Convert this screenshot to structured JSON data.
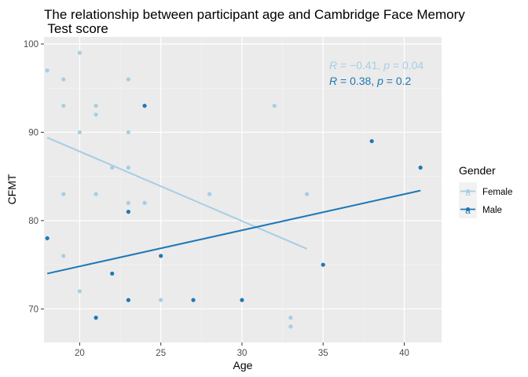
{
  "chart_data": {
    "type": "scatter",
    "title_line1": "The relationship between participant age and Cambridge Face Memory",
    "title_line2": " Test score",
    "xlabel": "Age",
    "ylabel": "CFMT",
    "xlim": [
      17.8,
      42.3
    ],
    "ylim": [
      66.2,
      100.8
    ],
    "xticks": [
      20,
      25,
      30,
      35,
      40
    ],
    "yticks": [
      70,
      80,
      90,
      100
    ],
    "grid": true,
    "legend": {
      "title": "Gender",
      "placement": "right"
    },
    "series": [
      {
        "name": "Female",
        "color": "#a6cee3",
        "points": [
          {
            "x": 18,
            "y": 97
          },
          {
            "x": 19,
            "y": 96
          },
          {
            "x": 19,
            "y": 93
          },
          {
            "x": 19,
            "y": 83
          },
          {
            "x": 19,
            "y": 76
          },
          {
            "x": 20,
            "y": 99
          },
          {
            "x": 20,
            "y": 90
          },
          {
            "x": 20,
            "y": 72
          },
          {
            "x": 21,
            "y": 93
          },
          {
            "x": 21,
            "y": 92
          },
          {
            "x": 21,
            "y": 83
          },
          {
            "x": 22,
            "y": 86
          },
          {
            "x": 23,
            "y": 96
          },
          {
            "x": 23,
            "y": 90
          },
          {
            "x": 23,
            "y": 86
          },
          {
            "x": 23,
            "y": 82
          },
          {
            "x": 24,
            "y": 82
          },
          {
            "x": 25,
            "y": 71
          },
          {
            "x": 28,
            "y": 83
          },
          {
            "x": 32,
            "y": 93
          },
          {
            "x": 33,
            "y": 69
          },
          {
            "x": 33,
            "y": 68
          },
          {
            "x": 34,
            "y": 83
          }
        ],
        "fit": {
          "x": [
            18,
            34
          ],
          "y": [
            89.4,
            76.8
          ]
        },
        "stat": {
          "r_value": "−0.41",
          "p_value": "0.04"
        }
      },
      {
        "name": "Male",
        "color": "#1f78b4",
        "points": [
          {
            "x": 18,
            "y": 78
          },
          {
            "x": 21,
            "y": 69
          },
          {
            "x": 22,
            "y": 74
          },
          {
            "x": 23,
            "y": 81
          },
          {
            "x": 23,
            "y": 71
          },
          {
            "x": 24,
            "y": 93
          },
          {
            "x": 25,
            "y": 76
          },
          {
            "x": 27,
            "y": 71
          },
          {
            "x": 30,
            "y": 71
          },
          {
            "x": 35,
            "y": 75
          },
          {
            "x": 38,
            "y": 89
          },
          {
            "x": 41,
            "y": 86
          }
        ],
        "fit": {
          "x": [
            18,
            41
          ],
          "y": [
            74.0,
            83.4
          ]
        },
        "stat": {
          "r_value": "0.38",
          "p_value": "0.2"
        }
      }
    ],
    "stat_labels": {
      "r": "R",
      "p": "p",
      "eq": " = ",
      "sep": ", "
    },
    "legend_glyph": "a"
  }
}
